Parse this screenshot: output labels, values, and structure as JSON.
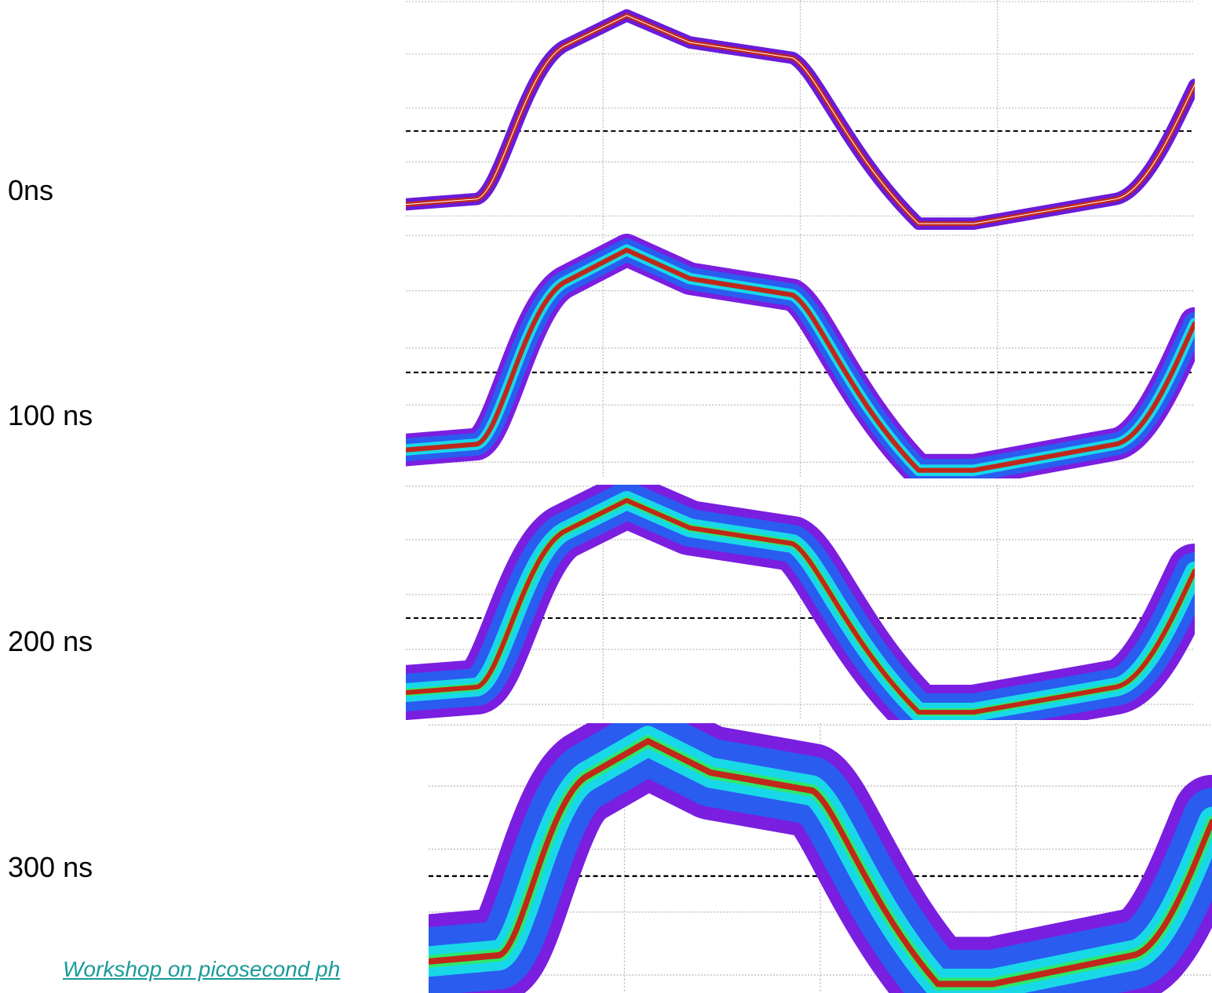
{
  "labels": [
    "0ns",
    "100 ns",
    "200 ns",
    "300 ns"
  ],
  "footer": "Workshop on picosecond ph"
}
